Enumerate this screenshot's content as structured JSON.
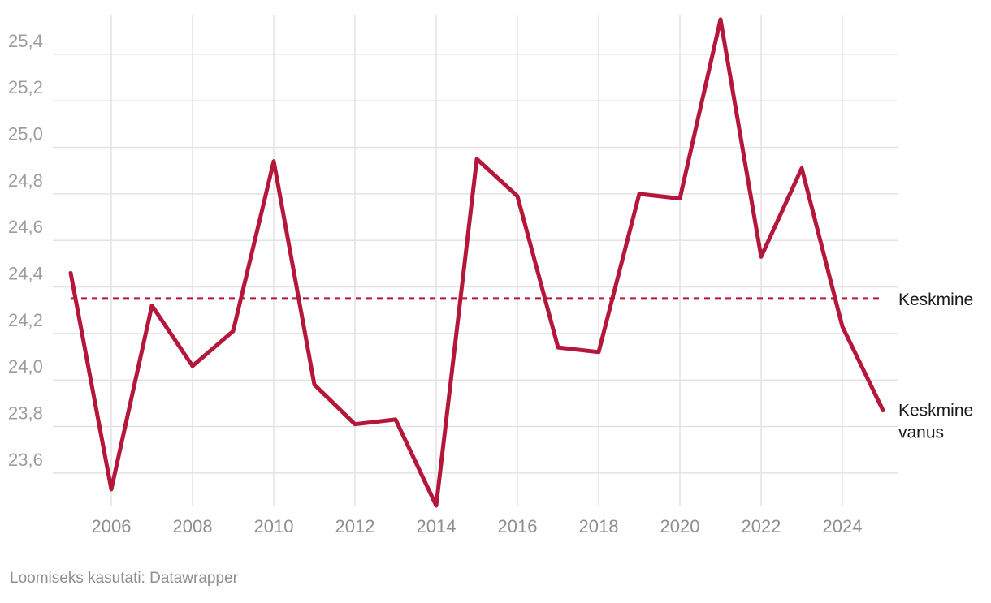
{
  "chart_data": {
    "type": "line",
    "title": "",
    "xlabel": "",
    "ylabel": "",
    "x": [
      2005,
      2006,
      2007,
      2008,
      2009,
      2010,
      2011,
      2012,
      2013,
      2014,
      2015,
      2016,
      2017,
      2018,
      2019,
      2020,
      2021,
      2022,
      2023,
      2024,
      2025
    ],
    "series": [
      {
        "name": "Keskmine vanus",
        "color": "#b5173a",
        "values": [
          24.46,
          23.53,
          24.32,
          24.06,
          24.21,
          24.94,
          23.98,
          23.81,
          23.83,
          23.46,
          24.95,
          24.79,
          24.14,
          24.12,
          24.8,
          24.78,
          25.55,
          24.53,
          24.91,
          24.23,
          23.87
        ]
      }
    ],
    "reference_line": {
      "name": "Keskmine",
      "value": 24.35,
      "color": "#b5173a",
      "style": "dashed"
    },
    "xticks": [
      "2006",
      "2008",
      "2010",
      "2012",
      "2014",
      "2016",
      "2018",
      "2020",
      "2022",
      "2024"
    ],
    "yticks": [
      "23,6",
      "23,8",
      "24,0",
      "24,2",
      "24,4",
      "24,6",
      "24,8",
      "25,0",
      "25,2",
      "25,4"
    ],
    "xlim": [
      2005,
      2025
    ],
    "ylim": [
      23.46,
      25.56
    ],
    "grid": true,
    "legend": "direct labels at right"
  },
  "series_label_lines": [
    "Keskmine",
    "vanus"
  ],
  "footer": "Loomiseks kasutati: Datawrapper"
}
